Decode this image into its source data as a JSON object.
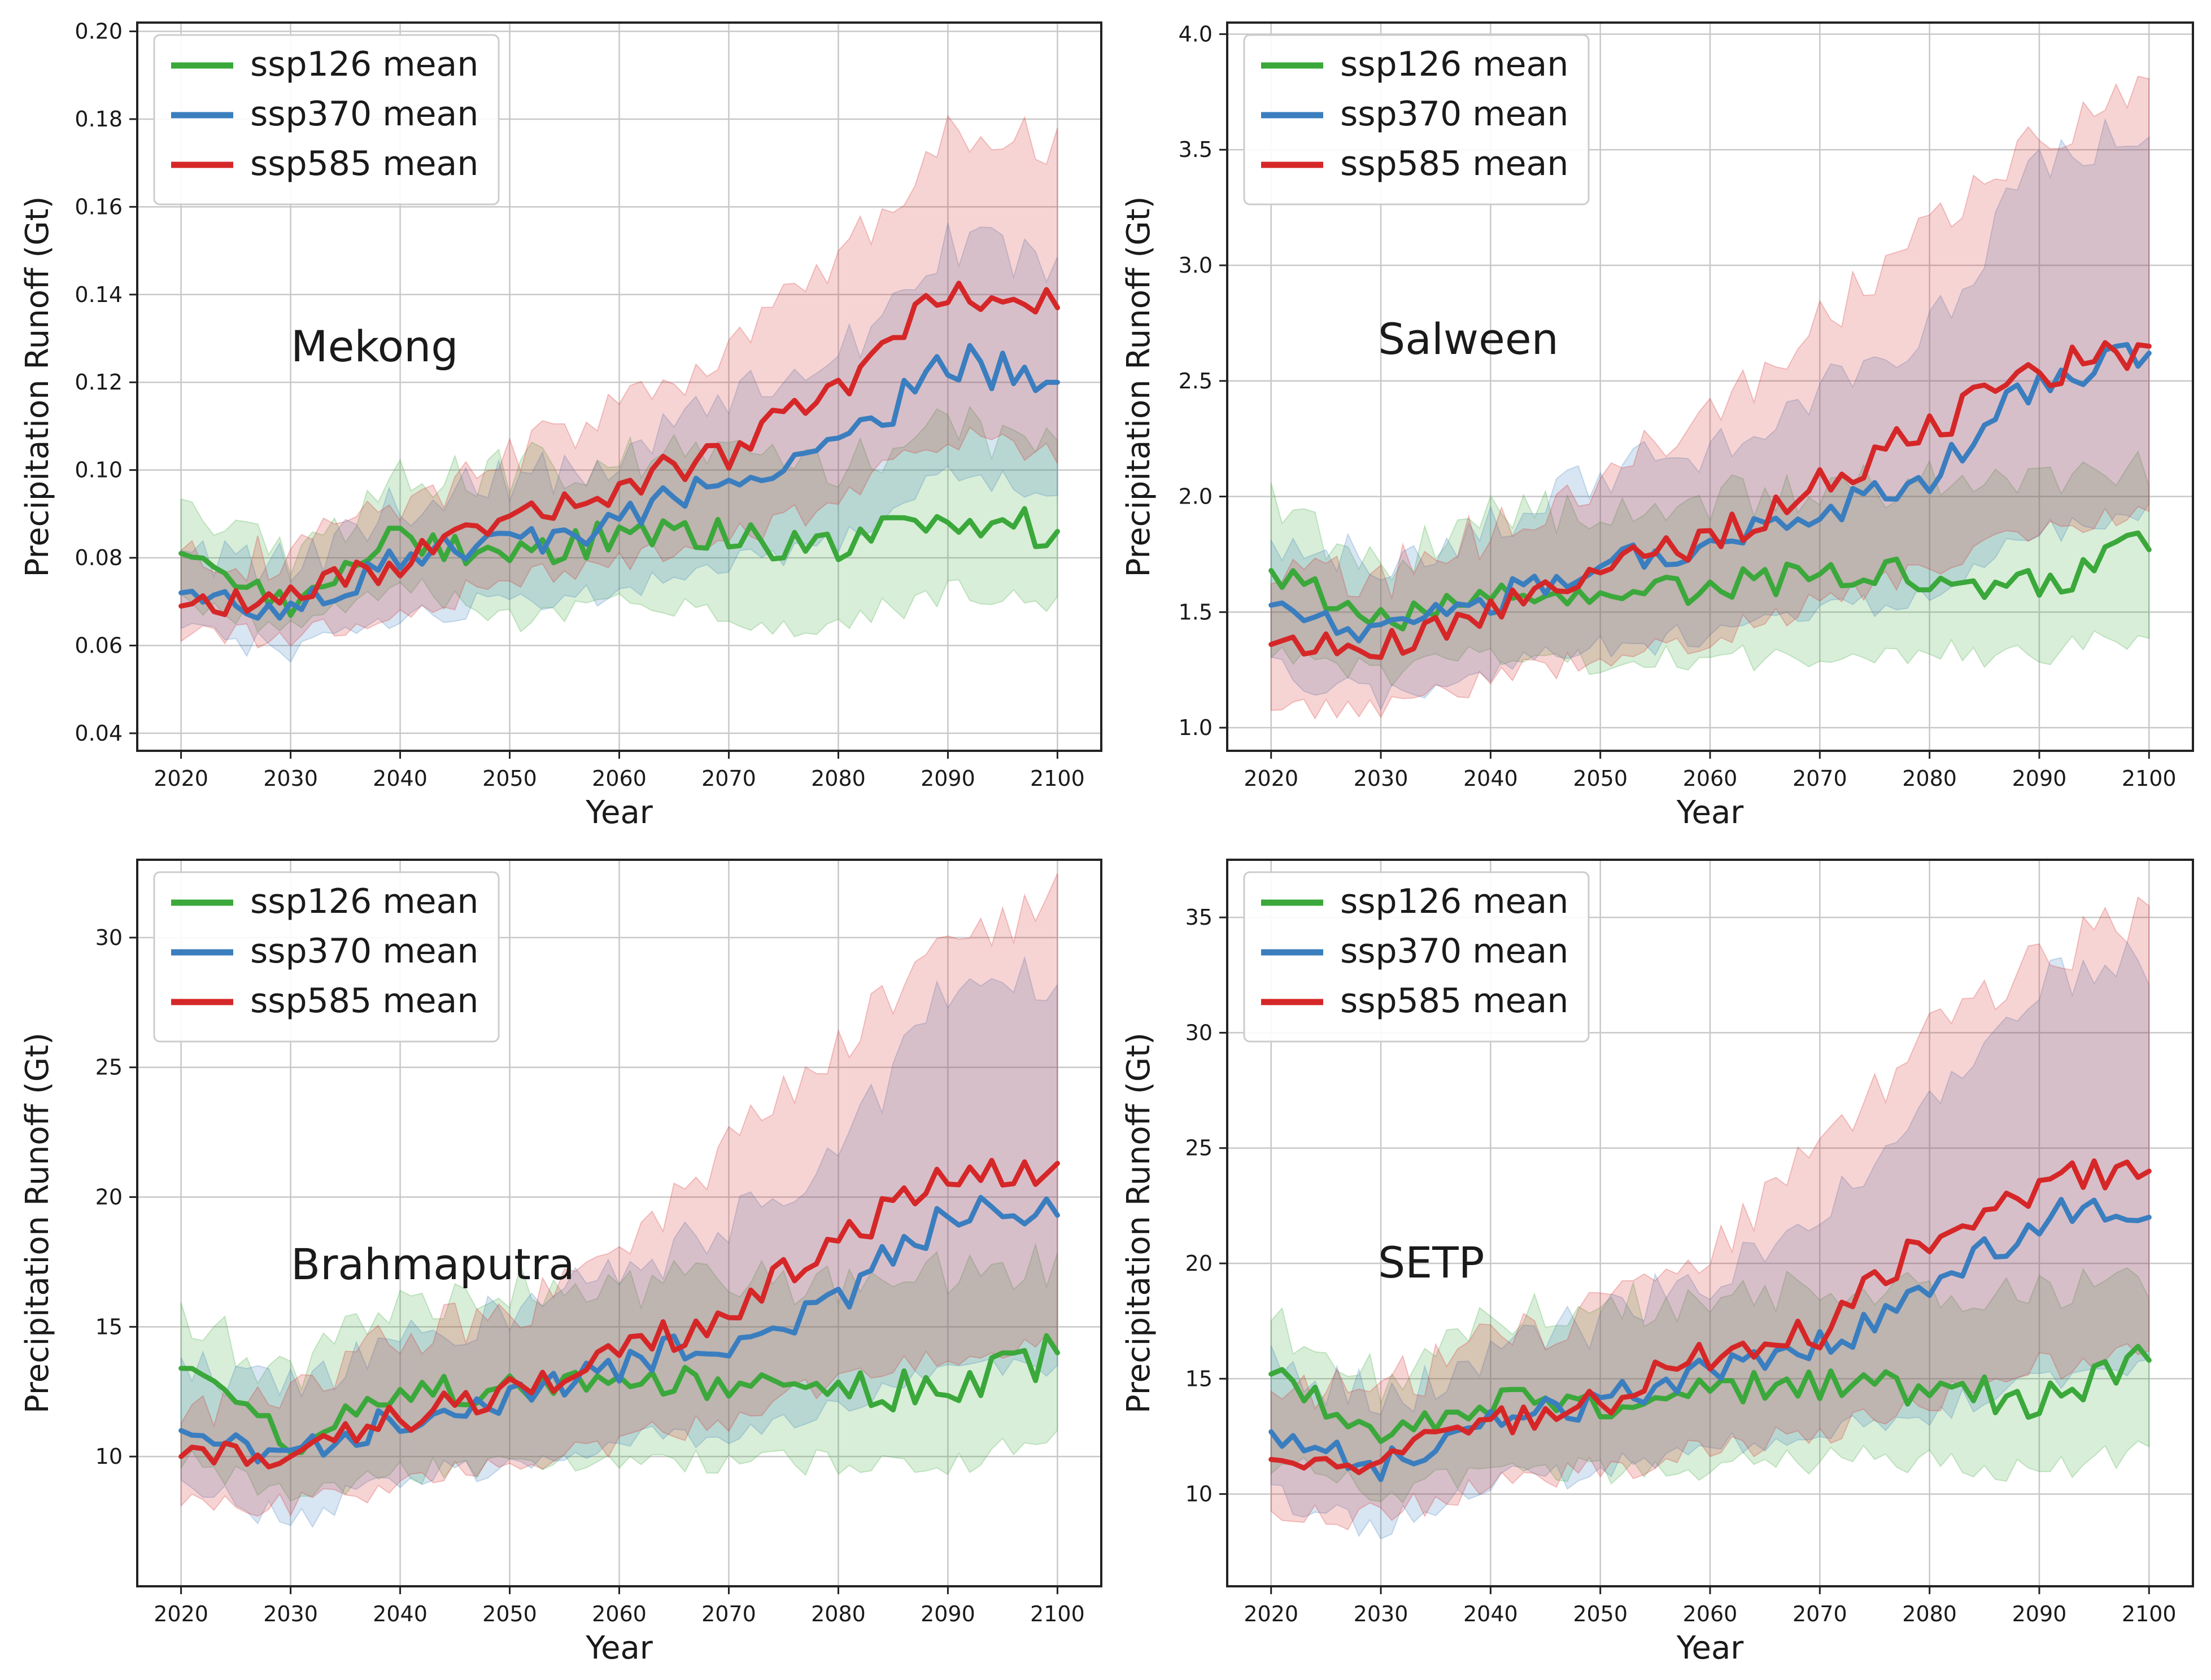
{
  "chart_data": [
    {
      "type": "line",
      "title": "Mekong",
      "xlabel": "Year",
      "ylabel": "Precipitation Runoff (Gt)",
      "xlim": [
        2016,
        2104
      ],
      "ylim": [
        0.036,
        0.202
      ],
      "xticks": [
        2020,
        2030,
        2040,
        2050,
        2060,
        2070,
        2080,
        2090,
        2100
      ],
      "xtick_labels": [
        "2020",
        "2030",
        "2040",
        "2050",
        "2060",
        "2070",
        "2080",
        "2090",
        "2100"
      ],
      "yticks": [
        0.04,
        0.06,
        0.08,
        0.1,
        0.12,
        0.14,
        0.16,
        0.18,
        0.2
      ],
      "ytick_labels": [
        "0.04",
        "0.06",
        "0.08",
        "0.10",
        "0.12",
        "0.14",
        "0.16",
        "0.18",
        "0.20"
      ],
      "grid": true,
      "legend": "upper-left",
      "x": [
        2020,
        2030,
        2040,
        2050,
        2060,
        2070,
        2080,
        2090,
        2100
      ],
      "series": [
        {
          "name": "ssp126 mean",
          "color": "#3ba83b",
          "values": [
            0.081,
            0.07,
            0.085,
            0.08,
            0.085,
            0.085,
            0.082,
            0.09,
            0.086
          ],
          "lower": [
            0.07,
            0.063,
            0.074,
            0.066,
            0.069,
            0.067,
            0.064,
            0.073,
            0.07
          ],
          "upper": [
            0.09,
            0.08,
            0.097,
            0.1,
            0.103,
            0.104,
            0.1,
            0.11,
            0.105
          ]
        },
        {
          "name": "ssp370 mean",
          "color": "#3a7ebf",
          "values": [
            0.072,
            0.068,
            0.08,
            0.083,
            0.088,
            0.098,
            0.104,
            0.125,
            0.12
          ],
          "lower": [
            0.064,
            0.058,
            0.068,
            0.069,
            0.073,
            0.08,
            0.083,
            0.1,
            0.095
          ],
          "upper": [
            0.08,
            0.078,
            0.092,
            0.098,
            0.103,
            0.117,
            0.126,
            0.152,
            0.147
          ]
        },
        {
          "name": "ssp585 mean",
          "color": "#d62728",
          "values": [
            0.069,
            0.071,
            0.079,
            0.088,
            0.096,
            0.104,
            0.118,
            0.14,
            0.137
          ],
          "lower": [
            0.061,
            0.063,
            0.068,
            0.075,
            0.08,
            0.084,
            0.093,
            0.108,
            0.103
          ],
          "upper": [
            0.078,
            0.081,
            0.091,
            0.103,
            0.113,
            0.128,
            0.148,
            0.178,
            0.175
          ]
        }
      ]
    },
    {
      "type": "line",
      "title": "Salween",
      "xlabel": "Year",
      "ylabel": "Precipitation Runoff (Gt)",
      "xlim": [
        2016,
        2104
      ],
      "ylim": [
        0.9,
        4.05
      ],
      "xticks": [
        2020,
        2030,
        2040,
        2050,
        2060,
        2070,
        2080,
        2090,
        2100
      ],
      "xtick_labels": [
        "2020",
        "2030",
        "2040",
        "2050",
        "2060",
        "2070",
        "2080",
        "2090",
        "2100"
      ],
      "yticks": [
        1.0,
        1.5,
        2.0,
        2.5,
        3.0,
        3.5,
        4.0
      ],
      "ytick_labels": [
        "1.0",
        "1.5",
        "2.0",
        "2.5",
        "3.0",
        "3.5",
        "4.0"
      ],
      "grid": true,
      "legend": "upper-left",
      "x": [
        2020,
        2030,
        2040,
        2050,
        2060,
        2070,
        2080,
        2090,
        2100
      ],
      "series": [
        {
          "name": "ssp126 mean",
          "color": "#3ba83b",
          "values": [
            1.68,
            1.45,
            1.6,
            1.58,
            1.62,
            1.65,
            1.65,
            1.65,
            1.77
          ],
          "lower": [
            1.35,
            1.22,
            1.32,
            1.28,
            1.3,
            1.32,
            1.32,
            1.32,
            1.42
          ],
          "upper": [
            1.95,
            1.7,
            1.9,
            1.95,
            2.0,
            2.05,
            2.05,
            2.05,
            2.15
          ]
        },
        {
          "name": "ssp370 mean",
          "color": "#3a7ebf",
          "values": [
            1.53,
            1.4,
            1.55,
            1.7,
            1.78,
            1.92,
            2.05,
            2.5,
            2.62
          ],
          "lower": [
            1.25,
            1.12,
            1.25,
            1.35,
            1.4,
            1.5,
            1.58,
            1.85,
            1.92
          ],
          "upper": [
            1.85,
            1.68,
            1.85,
            2.1,
            2.2,
            2.45,
            2.7,
            3.45,
            3.6
          ]
        },
        {
          "name": "ssp585 mean",
          "color": "#d62728",
          "values": [
            1.36,
            1.35,
            1.5,
            1.68,
            1.8,
            2.05,
            2.3,
            2.55,
            2.65
          ],
          "lower": [
            1.1,
            1.1,
            1.2,
            1.32,
            1.38,
            1.55,
            1.7,
            1.85,
            1.95
          ],
          "upper": [
            1.7,
            1.65,
            1.85,
            2.1,
            2.35,
            2.75,
            3.2,
            3.55,
            3.75
          ]
        }
      ]
    },
    {
      "type": "line",
      "title": "Brahmaputra",
      "xlabel": "Year",
      "ylabel": "Precipitation Runoff (Gt)",
      "xlim": [
        2016,
        2104
      ],
      "ylim": [
        5.0,
        33.0
      ],
      "xticks": [
        2020,
        2030,
        2040,
        2050,
        2060,
        2070,
        2080,
        2090,
        2100
      ],
      "xtick_labels": [
        "2020",
        "2030",
        "2040",
        "2050",
        "2060",
        "2070",
        "2080",
        "2090",
        "2100"
      ],
      "yticks": [
        10,
        15,
        20,
        25,
        30
      ],
      "ytick_labels": [
        "10",
        "15",
        "20",
        "25",
        "30"
      ],
      "grid": true,
      "legend": "upper-left",
      "x": [
        2020,
        2030,
        2040,
        2050,
        2060,
        2070,
        2080,
        2090,
        2100
      ],
      "series": [
        {
          "name": "ssp126 mean",
          "color": "#3ba83b",
          "values": [
            13.4,
            10.5,
            12.5,
            12.5,
            12.8,
            12.8,
            12.5,
            12.6,
            14.0
          ],
          "lower": [
            10.0,
            8.5,
            9.5,
            9.5,
            9.8,
            9.8,
            9.8,
            9.8,
            10.5
          ],
          "upper": [
            15.5,
            13.0,
            16.0,
            16.5,
            16.5,
            17.0,
            16.5,
            17.0,
            17.5
          ]
        },
        {
          "name": "ssp370 mean",
          "color": "#3a7ebf",
          "values": [
            11.0,
            10.0,
            11.5,
            12.3,
            13.5,
            14.5,
            16.0,
            19.5,
            19.3
          ],
          "lower": [
            9.0,
            7.5,
            9.2,
            9.5,
            10.5,
            11.0,
            12.0,
            13.5,
            13.5
          ],
          "upper": [
            13.5,
            12.5,
            14.5,
            15.5,
            17.0,
            19.0,
            21.5,
            28.0,
            28.5
          ]
        },
        {
          "name": "ssp585 mean",
          "color": "#d62728",
          "values": [
            10.0,
            10.0,
            11.5,
            12.5,
            14.0,
            15.5,
            18.5,
            20.5,
            21.3
          ],
          "lower": [
            8.0,
            8.0,
            9.0,
            9.8,
            10.5,
            11.5,
            13.0,
            14.0,
            14.5
          ],
          "upper": [
            12.0,
            12.5,
            14.5,
            15.5,
            18.0,
            22.0,
            26.0,
            29.5,
            31.5
          ]
        }
      ]
    },
    {
      "type": "line",
      "title": "SETP",
      "xlabel": "Year",
      "ylabel": "Precipitation Runoff (Gt)",
      "xlim": [
        2016,
        2104
      ],
      "ylim": [
        6.0,
        37.5
      ],
      "xticks": [
        2020,
        2030,
        2040,
        2050,
        2060,
        2070,
        2080,
        2090,
        2100
      ],
      "xtick_labels": [
        "2020",
        "2030",
        "2040",
        "2050",
        "2060",
        "2070",
        "2080",
        "2090",
        "2100"
      ],
      "yticks": [
        10,
        15,
        20,
        25,
        30,
        35
      ],
      "ytick_labels": [
        "10",
        "15",
        "20",
        "25",
        "30",
        "35"
      ],
      "grid": true,
      "legend": "upper-left",
      "x": [
        2020,
        2030,
        2040,
        2050,
        2060,
        2070,
        2080,
        2090,
        2100
      ],
      "series": [
        {
          "name": "ssp126 mean",
          "color": "#3ba83b",
          "values": [
            15.2,
            12.5,
            14.0,
            14.0,
            14.5,
            14.8,
            14.5,
            14.0,
            15.8
          ],
          "lower": [
            11.5,
            10.0,
            11.0,
            11.0,
            11.2,
            11.5,
            11.5,
            11.0,
            12.0
          ],
          "upper": [
            17.5,
            15.0,
            17.5,
            18.0,
            18.5,
            19.0,
            18.5,
            18.5,
            19.5
          ]
        },
        {
          "name": "ssp370 mean",
          "color": "#3a7ebf",
          "values": [
            12.7,
            11.2,
            13.0,
            14.0,
            15.5,
            16.5,
            18.5,
            22.0,
            22.0
          ],
          "lower": [
            10.0,
            8.5,
            10.5,
            11.0,
            12.0,
            12.5,
            13.5,
            15.0,
            15.5
          ],
          "upper": [
            15.5,
            14.0,
            16.0,
            17.5,
            19.5,
            22.5,
            26.5,
            32.5,
            33.0
          ]
        },
        {
          "name": "ssp585 mean",
          "color": "#d62728",
          "values": [
            11.5,
            11.5,
            13.0,
            14.0,
            16.0,
            17.0,
            21.0,
            23.5,
            24.0
          ],
          "lower": [
            9.0,
            9.0,
            10.5,
            11.0,
            12.0,
            12.5,
            14.0,
            15.5,
            16.0
          ],
          "upper": [
            14.0,
            14.5,
            16.5,
            18.0,
            20.5,
            25.0,
            30.0,
            33.0,
            35.5
          ]
        }
      ]
    }
  ]
}
